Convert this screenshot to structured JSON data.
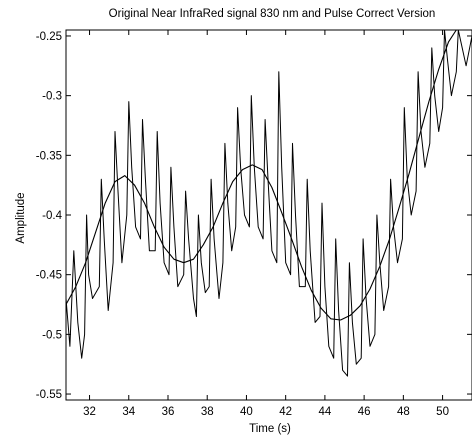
{
  "chart_data": {
    "type": "line",
    "title": "Original Near InfraRed signal 830 nm and Pulse Correct Version",
    "xlabel": "Time (s)",
    "ylabel": "Amplitude",
    "xlim": [
      30.8,
      51.5
    ],
    "ylim": [
      -0.555,
      -0.245
    ],
    "xticks": [
      32,
      34,
      36,
      38,
      40,
      42,
      44,
      46,
      48,
      50
    ],
    "xtick_labels": [
      "32",
      "34",
      "36",
      "38",
      "40",
      "42",
      "44",
      "46",
      "48",
      "50"
    ],
    "yticks": [
      -0.25,
      -0.3,
      -0.35,
      -0.4,
      -0.45,
      -0.5,
      -0.55
    ],
    "ytick_labels": [
      "-0.25",
      "-0.3",
      "-0.35",
      "-0.4",
      "-0.45",
      "-0.5",
      "-0.55"
    ],
    "grid": false,
    "series": [
      {
        "style": "raw-pulsatile",
        "color": "#000000",
        "points": [
          [
            30.8,
            -0.47
          ],
          [
            31.0,
            -0.51
          ],
          [
            31.2,
            -0.43
          ],
          [
            31.4,
            -0.49
          ],
          [
            31.6,
            -0.52
          ],
          [
            31.75,
            -0.5
          ],
          [
            31.85,
            -0.4
          ],
          [
            31.95,
            -0.45
          ],
          [
            32.15,
            -0.47
          ],
          [
            32.5,
            -0.46
          ],
          [
            32.6,
            -0.37
          ],
          [
            32.75,
            -0.42
          ],
          [
            32.95,
            -0.48
          ],
          [
            33.2,
            -0.44
          ],
          [
            33.3,
            -0.33
          ],
          [
            33.45,
            -0.38
          ],
          [
            33.65,
            -0.44
          ],
          [
            33.9,
            -0.4
          ],
          [
            34.0,
            -0.305
          ],
          [
            34.15,
            -0.36
          ],
          [
            34.35,
            -0.41
          ],
          [
            34.6,
            -0.42
          ],
          [
            34.7,
            -0.32
          ],
          [
            34.85,
            -0.37
          ],
          [
            35.05,
            -0.43
          ],
          [
            35.35,
            -0.43
          ],
          [
            35.45,
            -0.33
          ],
          [
            35.6,
            -0.39
          ],
          [
            35.8,
            -0.44
          ],
          [
            36.05,
            -0.45
          ],
          [
            36.15,
            -0.36
          ],
          [
            36.3,
            -0.41
          ],
          [
            36.5,
            -0.46
          ],
          [
            36.8,
            -0.45
          ],
          [
            36.9,
            -0.38
          ],
          [
            37.05,
            -0.42
          ],
          [
            37.3,
            -0.47
          ],
          [
            37.45,
            -0.485
          ],
          [
            37.55,
            -0.4
          ],
          [
            37.7,
            -0.44
          ],
          [
            37.9,
            -0.465
          ],
          [
            38.1,
            -0.46
          ],
          [
            38.2,
            -0.37
          ],
          [
            38.35,
            -0.42
          ],
          [
            38.6,
            -0.47
          ],
          [
            38.8,
            -0.44
          ],
          [
            38.9,
            -0.34
          ],
          [
            39.05,
            -0.39
          ],
          [
            39.25,
            -0.43
          ],
          [
            39.45,
            -0.41
          ],
          [
            39.55,
            -0.31
          ],
          [
            39.7,
            -0.36
          ],
          [
            39.9,
            -0.4
          ],
          [
            40.15,
            -0.41
          ],
          [
            40.25,
            -0.3
          ],
          [
            40.4,
            -0.36
          ],
          [
            40.6,
            -0.41
          ],
          [
            40.85,
            -0.42
          ],
          [
            40.95,
            -0.32
          ],
          [
            41.1,
            -0.37
          ],
          [
            41.3,
            -0.43
          ],
          [
            41.55,
            -0.44
          ],
          [
            41.65,
            -0.28
          ],
          [
            41.8,
            -0.36
          ],
          [
            42.0,
            -0.44
          ],
          [
            42.25,
            -0.45
          ],
          [
            42.35,
            -0.34
          ],
          [
            42.5,
            -0.4
          ],
          [
            42.7,
            -0.46
          ],
          [
            43.0,
            -0.46
          ],
          [
            43.1,
            -0.37
          ],
          [
            43.25,
            -0.43
          ],
          [
            43.5,
            -0.49
          ],
          [
            43.75,
            -0.485
          ],
          [
            43.85,
            -0.39
          ],
          [
            44.0,
            -0.46
          ],
          [
            44.2,
            -0.51
          ],
          [
            44.45,
            -0.52
          ],
          [
            44.55,
            -0.42
          ],
          [
            44.7,
            -0.48
          ],
          [
            44.9,
            -0.53
          ],
          [
            45.15,
            -0.535
          ],
          [
            45.25,
            -0.44
          ],
          [
            45.4,
            -0.49
          ],
          [
            45.6,
            -0.525
          ],
          [
            45.85,
            -0.52
          ],
          [
            45.95,
            -0.42
          ],
          [
            46.1,
            -0.47
          ],
          [
            46.3,
            -0.51
          ],
          [
            46.55,
            -0.5
          ],
          [
            46.65,
            -0.4
          ],
          [
            46.8,
            -0.44
          ],
          [
            47.0,
            -0.48
          ],
          [
            47.25,
            -0.46
          ],
          [
            47.35,
            -0.37
          ],
          [
            47.5,
            -0.41
          ],
          [
            47.7,
            -0.44
          ],
          [
            47.95,
            -0.42
          ],
          [
            48.05,
            -0.31
          ],
          [
            48.2,
            -0.37
          ],
          [
            48.4,
            -0.4
          ],
          [
            48.65,
            -0.38
          ],
          [
            48.75,
            -0.28
          ],
          [
            48.9,
            -0.33
          ],
          [
            49.1,
            -0.36
          ],
          [
            49.35,
            -0.34
          ],
          [
            49.45,
            -0.26
          ],
          [
            49.6,
            -0.3
          ],
          [
            49.8,
            -0.33
          ],
          [
            50.0,
            -0.31
          ],
          [
            50.1,
            -0.245
          ],
          [
            50.25,
            -0.27
          ],
          [
            50.45,
            -0.3
          ],
          [
            50.7,
            -0.28
          ],
          [
            50.8,
            -0.245
          ],
          [
            51.0,
            -0.26
          ],
          [
            51.2,
            -0.275
          ],
          [
            51.5,
            -0.25
          ]
        ]
      },
      {
        "style": "pulse-corrected",
        "color": "#000000",
        "points": [
          [
            30.8,
            -0.475
          ],
          [
            31.3,
            -0.46
          ],
          [
            31.8,
            -0.44
          ],
          [
            32.3,
            -0.415
          ],
          [
            32.8,
            -0.39
          ],
          [
            33.3,
            -0.372
          ],
          [
            33.8,
            -0.367
          ],
          [
            34.3,
            -0.375
          ],
          [
            34.8,
            -0.39
          ],
          [
            35.3,
            -0.41
          ],
          [
            35.8,
            -0.427
          ],
          [
            36.3,
            -0.437
          ],
          [
            36.8,
            -0.44
          ],
          [
            37.3,
            -0.437
          ],
          [
            37.8,
            -0.425
          ],
          [
            38.3,
            -0.41
          ],
          [
            38.8,
            -0.39
          ],
          [
            39.3,
            -0.372
          ],
          [
            39.8,
            -0.362
          ],
          [
            40.3,
            -0.358
          ],
          [
            40.8,
            -0.362
          ],
          [
            41.3,
            -0.377
          ],
          [
            41.8,
            -0.398
          ],
          [
            42.3,
            -0.42
          ],
          [
            42.8,
            -0.443
          ],
          [
            43.3,
            -0.463
          ],
          [
            43.8,
            -0.478
          ],
          [
            44.3,
            -0.487
          ],
          [
            44.8,
            -0.488
          ],
          [
            45.3,
            -0.484
          ],
          [
            45.8,
            -0.476
          ],
          [
            46.3,
            -0.462
          ],
          [
            46.8,
            -0.443
          ],
          [
            47.3,
            -0.42
          ],
          [
            47.8,
            -0.393
          ],
          [
            48.3,
            -0.365
          ],
          [
            48.8,
            -0.335
          ],
          [
            49.3,
            -0.305
          ],
          [
            49.8,
            -0.278
          ],
          [
            50.3,
            -0.255
          ],
          [
            50.7,
            -0.245
          ]
        ]
      }
    ]
  }
}
